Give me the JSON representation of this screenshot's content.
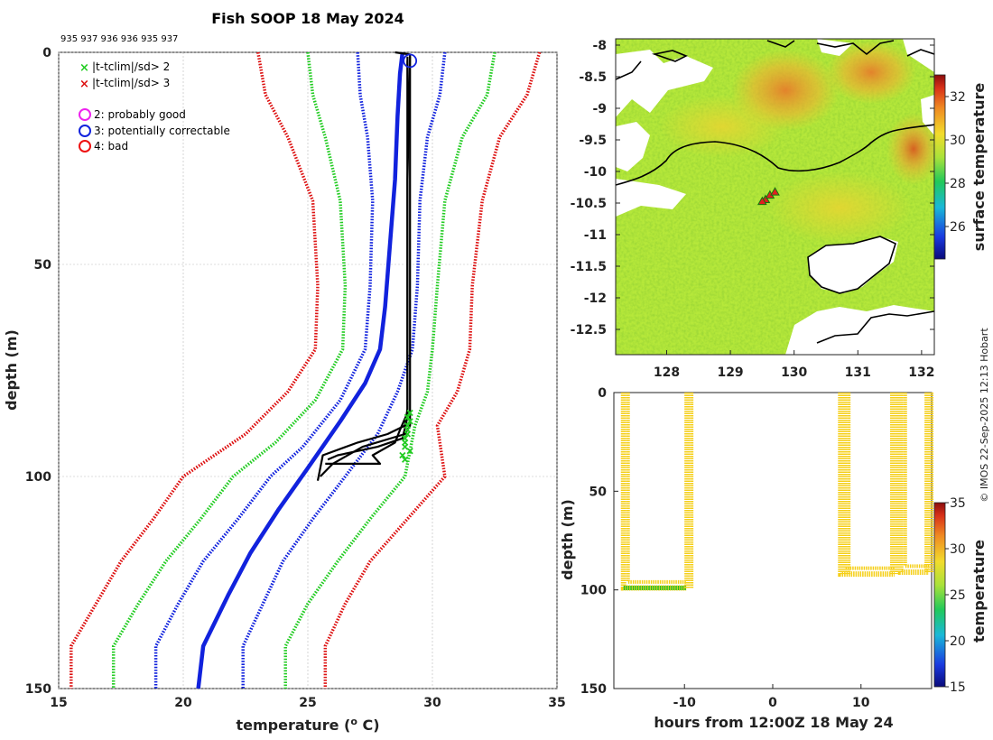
{
  "title": "Fish SOOP 18 May 2024",
  "profile_ids": "935 937 936 936 935 937",
  "credit": "© IMOS 22-Sep-2025 12:13 Hobart",
  "colors": {
    "sd2": "#22cc22",
    "sd3": "#dd1111",
    "clim": "#1122dd",
    "profile": "#000000",
    "qc_probably_good": "#ee22ee",
    "qc_correctable": "#1122dd",
    "qc_bad": "#ee1111"
  },
  "legend": {
    "sd2": "|t-tclim|/sd> 2",
    "sd3": "|t-tclim|/sd> 3",
    "qc2": "2: probably good",
    "qc3": "3: potentially correctable",
    "qc4": "4: bad"
  },
  "chart_data": [
    {
      "id": "profile",
      "type": "line",
      "title": "Fish SOOP 18 May 2024",
      "xlabel": "temperature (o C)",
      "ylabel": "depth (m)",
      "xlim": [
        15,
        35
      ],
      "ylim": [
        0,
        150
      ],
      "y_reversed": true,
      "xticks": [
        15,
        20,
        25,
        30,
        35
      ],
      "yticks": [
        0,
        50,
        100,
        150
      ],
      "grid": true,
      "series": [
        {
          "name": "clim_minus_3sd",
          "style": "dotted",
          "color": "sd3",
          "points": [
            [
              23.0,
              0
            ],
            [
              23.3,
              10
            ],
            [
              24.2,
              20
            ],
            [
              25.2,
              35
            ],
            [
              25.4,
              55
            ],
            [
              25.3,
              70
            ],
            [
              24.2,
              80
            ],
            [
              22.5,
              90
            ],
            [
              20.0,
              100
            ],
            [
              18.8,
              110
            ],
            [
              17.5,
              120
            ],
            [
              16.5,
              130
            ],
            [
              15.5,
              140
            ],
            [
              15.5,
              150
            ]
          ]
        },
        {
          "name": "clim_minus_2sd",
          "style": "dotted",
          "color": "sd2",
          "points": [
            [
              25.0,
              0
            ],
            [
              25.2,
              10
            ],
            [
              25.7,
              20
            ],
            [
              26.3,
              35
            ],
            [
              26.5,
              55
            ],
            [
              26.4,
              70
            ],
            [
              25.3,
              82
            ],
            [
              23.7,
              92
            ],
            [
              22.0,
              100
            ],
            [
              20.7,
              110
            ],
            [
              19.3,
              120
            ],
            [
              18.2,
              130
            ],
            [
              17.2,
              140
            ],
            [
              17.2,
              150
            ]
          ]
        },
        {
          "name": "clim_minus_1sd",
          "style": "dotted",
          "color": "clim",
          "points": [
            [
              27.0,
              0
            ],
            [
              27.1,
              10
            ],
            [
              27.4,
              20
            ],
            [
              27.6,
              35
            ],
            [
              27.5,
              55
            ],
            [
              27.3,
              70
            ],
            [
              26.3,
              82
            ],
            [
              24.8,
              93
            ],
            [
              23.5,
              100
            ],
            [
              22.2,
              110
            ],
            [
              20.8,
              120
            ],
            [
              19.8,
              130
            ],
            [
              18.9,
              140
            ],
            [
              18.9,
              150
            ]
          ]
        },
        {
          "name": "climatology",
          "style": "solid",
          "color": "clim",
          "points": [
            [
              28.8,
              0
            ],
            [
              28.7,
              5
            ],
            [
              28.6,
              15
            ],
            [
              28.5,
              30
            ],
            [
              28.3,
              45
            ],
            [
              28.1,
              60
            ],
            [
              27.9,
              70
            ],
            [
              27.3,
              78
            ],
            [
              26.3,
              87
            ],
            [
              25.0,
              98
            ],
            [
              23.8,
              108
            ],
            [
              22.7,
              118
            ],
            [
              21.8,
              128
            ],
            [
              20.8,
              140
            ],
            [
              20.6,
              150
            ]
          ]
        },
        {
          "name": "clim_plus_1sd",
          "style": "dotted",
          "color": "clim",
          "points": [
            [
              30.5,
              0
            ],
            [
              30.3,
              10
            ],
            [
              29.8,
              20
            ],
            [
              29.5,
              35
            ],
            [
              29.4,
              55
            ],
            [
              29.2,
              70
            ],
            [
              28.6,
              80
            ],
            [
              27.8,
              90
            ],
            [
              26.5,
              100
            ],
            [
              25.2,
              110
            ],
            [
              24.0,
              120
            ],
            [
              23.2,
              130
            ],
            [
              22.4,
              140
            ],
            [
              22.4,
              150
            ]
          ]
        },
        {
          "name": "clim_plus_2sd",
          "style": "dotted",
          "color": "sd2",
          "points": [
            [
              32.5,
              0
            ],
            [
              32.2,
              10
            ],
            [
              31.2,
              20
            ],
            [
              30.5,
              35
            ],
            [
              30.2,
              55
            ],
            [
              30.0,
              70
            ],
            [
              29.8,
              80
            ],
            [
              29.3,
              88
            ],
            [
              28.9,
              100
            ],
            [
              27.5,
              110
            ],
            [
              26.2,
              120
            ],
            [
              25.0,
              130
            ],
            [
              24.1,
              140
            ],
            [
              24.1,
              150
            ]
          ]
        },
        {
          "name": "clim_plus_3sd",
          "style": "dotted",
          "color": "sd3",
          "points": [
            [
              34.3,
              0
            ],
            [
              33.8,
              10
            ],
            [
              32.7,
              20
            ],
            [
              32.0,
              35
            ],
            [
              31.6,
              55
            ],
            [
              31.5,
              70
            ],
            [
              31.0,
              80
            ],
            [
              30.2,
              88
            ],
            [
              30.5,
              100
            ],
            [
              29.0,
              110
            ],
            [
              27.5,
              120
            ],
            [
              26.5,
              130
            ],
            [
              25.7,
              140
            ],
            [
              25.7,
              150
            ]
          ]
        }
      ],
      "profiles": [
        {
          "points": [
            [
              28.5,
              0
            ],
            [
              29.1,
              0.5
            ],
            [
              29.1,
              10
            ],
            [
              29.1,
              40
            ],
            [
              29.1,
              75
            ],
            [
              29.1,
              88
            ],
            [
              28.9,
              90
            ],
            [
              27.2,
              93
            ],
            [
              26.0,
              97
            ],
            [
              25.5,
              100
            ]
          ]
        },
        {
          "points": [
            [
              29.1,
              1
            ],
            [
              29.0,
              30
            ],
            [
              29.0,
              84
            ],
            [
              28.9,
              88
            ],
            [
              28.2,
              90
            ],
            [
              27.0,
              92
            ],
            [
              25.6,
              95
            ],
            [
              25.4,
              101
            ]
          ]
        },
        {
          "points": [
            [
              29.0,
              2
            ],
            [
              29.0,
              60
            ],
            [
              29.0,
              86
            ],
            [
              28.8,
              91
            ],
            [
              27.8,
              93
            ],
            [
              26.2,
              95
            ],
            [
              25.8,
              96
            ]
          ]
        },
        {
          "points": [
            [
              29.0,
              1
            ],
            [
              29.0,
              85
            ],
            [
              28.7,
              89
            ],
            [
              28.5,
              92
            ],
            [
              27.6,
              95
            ],
            [
              27.9,
              97
            ],
            [
              25.7,
              97
            ]
          ]
        }
      ],
      "flags_sd2": [
        [
          29.1,
          85
        ],
        [
          29.1,
          87
        ],
        [
          29.0,
          89
        ],
        [
          29.0,
          90
        ],
        [
          28.9,
          92
        ],
        [
          28.9,
          93
        ],
        [
          28.8,
          95
        ],
        [
          28.9,
          96
        ],
        [
          29.1,
          94
        ],
        [
          29.0,
          88
        ],
        [
          28.9,
          91
        ],
        [
          29.0,
          86
        ]
      ],
      "flags_sd3": [],
      "qc_markers": [
        {
          "qc": 3,
          "t": 29.1,
          "d": 2
        }
      ]
    },
    {
      "id": "map",
      "type": "heatmap",
      "xticks": [
        128,
        129,
        130,
        131,
        132
      ],
      "yticks": [
        -8,
        -8.5,
        -9,
        -9.5,
        -10,
        -10.5,
        -11,
        -11.5,
        -12,
        -12.5
      ],
      "xlim": [
        127.2,
        132.2
      ],
      "ylim": [
        -12.9,
        -7.9
      ],
      "colorbar_label": "surface temperature",
      "colorbar_ticks": [
        26,
        28,
        30,
        32
      ],
      "colorbar_range": [
        24.5,
        33
      ],
      "stations": [
        [
          129.55,
          -10.45
        ],
        [
          129.62,
          -10.38
        ],
        [
          129.7,
          -10.33
        ],
        [
          129.5,
          -10.48
        ]
      ]
    },
    {
      "id": "section",
      "type": "scatter",
      "xlabel": "hours from 12:00Z 18 May 24",
      "ylabel": "depth (m)",
      "xlim": [
        -18,
        18
      ],
      "ylim": [
        0,
        150
      ],
      "y_reversed": true,
      "xticks": [
        -10,
        0,
        10
      ],
      "yticks": [
        0,
        50,
        100,
        150
      ],
      "colorbar_label": "temperature",
      "colorbar_ticks": [
        15,
        20,
        25,
        30,
        35
      ],
      "colorbar_range": [
        15,
        35
      ],
      "casts": [
        {
          "x0": -16.9,
          "x1": -9.8,
          "bottom": 99,
          "top_temp": 29.0,
          "bottom_temp": 24.0
        },
        {
          "x0": 7.7,
          "x1": 13.8,
          "bottom": 92,
          "top_temp": 29.0,
          "bottom_temp": 28.5
        },
        {
          "x0": 14.5,
          "x1": 17.7,
          "bottom": 91,
          "top_temp": 29.0,
          "bottom_temp": 28.6
        }
      ],
      "extra_verticals": [
        [
          -9.7,
          0,
          99
        ],
        [
          8.1,
          0,
          92
        ],
        [
          13.6,
          0,
          92
        ],
        [
          17.5,
          0,
          91
        ]
      ]
    }
  ]
}
